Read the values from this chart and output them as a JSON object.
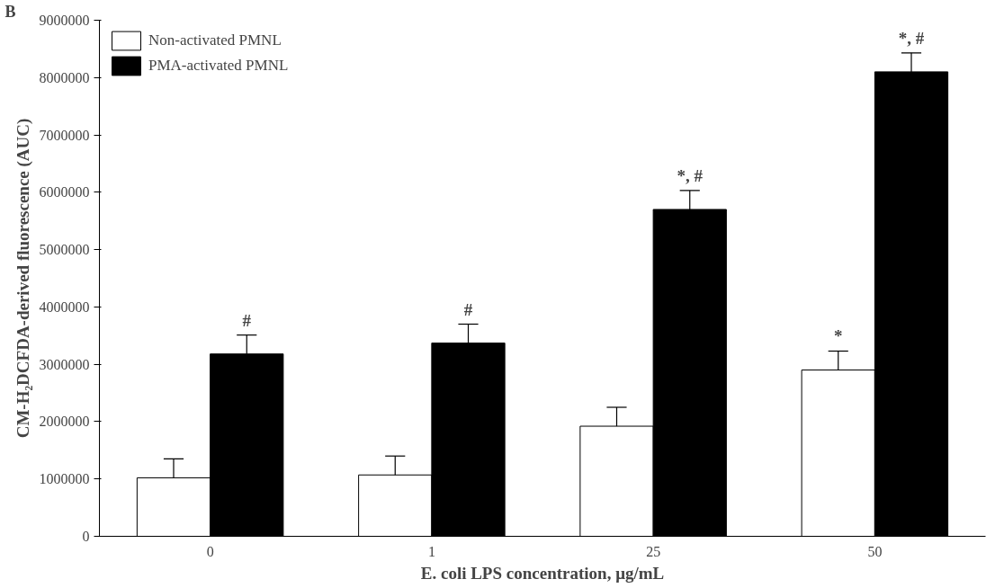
{
  "chart_data": {
    "type": "bar",
    "xlabel": "E. coli LPS concentration, μg/mL",
    "ylabel": "CM-H₂DCFDA-derived fluorescence (AUC)",
    "categories": [
      "0",
      "1",
      "25",
      "50"
    ],
    "series": [
      {
        "name": "Non-activated PMNL",
        "color": "#ffffff",
        "values": [
          1020000,
          1070000,
          1920000,
          2900000
        ],
        "errors": [
          330000,
          330000,
          330000,
          330000
        ]
      },
      {
        "name": "PMA-activated PMNL",
        "color": "#000000",
        "values": [
          3180000,
          3370000,
          5700000,
          8100000
        ],
        "errors": [
          330000,
          330000,
          330000,
          330000
        ]
      }
    ],
    "ylim": [
      0,
      9000000
    ],
    "yticks": [
      0,
      1000000,
      2000000,
      3000000,
      4000000,
      5000000,
      6000000,
      7000000,
      8000000,
      9000000
    ],
    "grid": false,
    "legend": "top left",
    "annotations": [
      "B",
      {
        "text": "#",
        "x": "0",
        "y": 3180000
      },
      {
        "text": "#",
        "x": "1",
        "y": 3370000
      },
      {
        "text": "*, #",
        "x": "25",
        "y": 5700000
      },
      {
        "text": "*",
        "x": "50",
        "y": 2900000
      },
      {
        "text": "*, #",
        "x": "50",
        "y": 8100000
      }
    ]
  }
}
